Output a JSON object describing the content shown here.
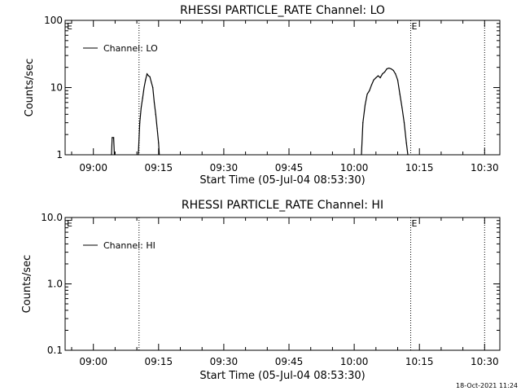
{
  "timestamp": "18-Oct-2021 11:24",
  "chart_data": [
    {
      "type": "line",
      "title": "RHESSI PARTICLE_RATE Channel: LO",
      "xlabel": "Start Time (05-Jul-04 08:53:30)",
      "ylabel": "Counts/sec",
      "yscale": "log",
      "xlim": [
        "08:53:30",
        "10:33:30"
      ],
      "ylim": [
        1,
        100
      ],
      "xticks": [
        "09:00",
        "09:15",
        "09:30",
        "09:45",
        "10:00",
        "10:15",
        "10:30"
      ],
      "yticks": [
        "1",
        "10",
        "100"
      ],
      "legend": {
        "label": "Channel: LO",
        "placement": "top-left"
      },
      "markers": [
        {
          "time": "09:10:30",
          "label": ""
        },
        {
          "time": "10:13:00",
          "label": "E"
        },
        {
          "time": "10:30:00",
          "label": ""
        }
      ],
      "corner_label": "E",
      "series": [
        {
          "name": "Channel: LO",
          "segments": [
            [
              [
                "09:04:10",
                1.0
              ],
              [
                "09:04:20",
                1.8
              ],
              [
                "09:04:40",
                1.8
              ],
              [
                "09:04:50",
                1.0
              ]
            ],
            [
              [
                "09:10:20",
                1.0
              ],
              [
                "09:10:40",
                3.0
              ],
              [
                "09:11:00",
                5.0
              ],
              [
                "09:11:20",
                7.0
              ],
              [
                "09:11:40",
                10.0
              ],
              [
                "09:12:00",
                13.0
              ],
              [
                "09:12:20",
                16.0
              ],
              [
                "09:12:40",
                15.0
              ],
              [
                "09:13:00",
                14.5
              ],
              [
                "09:13:20",
                12.0
              ],
              [
                "09:13:40",
                10.0
              ],
              [
                "09:14:00",
                6.0
              ],
              [
                "09:14:20",
                4.0
              ],
              [
                "09:14:40",
                2.5
              ],
              [
                "09:15:00",
                1.5
              ],
              [
                "09:15:10",
                1.0
              ]
            ],
            [
              [
                "10:01:40",
                1.0
              ],
              [
                "10:02:00",
                3.0
              ],
              [
                "10:02:30",
                5.5
              ],
              [
                "10:03:00",
                8.0
              ],
              [
                "10:03:30",
                9.0
              ],
              [
                "10:04:00",
                11.0
              ],
              [
                "10:04:30",
                13.0
              ],
              [
                "10:05:00",
                14.0
              ],
              [
                "10:05:30",
                15.0
              ],
              [
                "10:06:00",
                14.0
              ],
              [
                "10:06:30",
                16.0
              ],
              [
                "10:07:00",
                17.0
              ],
              [
                "10:07:30",
                19.0
              ],
              [
                "10:08:00",
                19.5
              ],
              [
                "10:08:30",
                19.0
              ],
              [
                "10:09:00",
                18.0
              ],
              [
                "10:09:30",
                16.0
              ],
              [
                "10:10:00",
                13.0
              ],
              [
                "10:10:30",
                8.0
              ],
              [
                "10:11:00",
                5.0
              ],
              [
                "10:11:30",
                3.0
              ],
              [
                "10:12:00",
                1.5
              ],
              [
                "10:12:20",
                1.0
              ]
            ]
          ]
        }
      ]
    },
    {
      "type": "line",
      "title": "RHESSI PARTICLE_RATE Channel: HI",
      "xlabel": "Start Time (05-Jul-04 08:53:30)",
      "ylabel": "Counts/sec",
      "yscale": "log",
      "xlim": [
        "08:53:30",
        "10:33:30"
      ],
      "ylim": [
        0.1,
        10
      ],
      "xticks": [
        "09:00",
        "09:15",
        "09:30",
        "09:45",
        "10:00",
        "10:15",
        "10:30"
      ],
      "yticks": [
        "0.1",
        "1.0",
        "10.0"
      ],
      "legend": {
        "label": "Channel: HI",
        "placement": "top-left"
      },
      "markers": [
        {
          "time": "09:10:30",
          "label": ""
        },
        {
          "time": "10:13:00",
          "label": "E"
        },
        {
          "time": "10:30:00",
          "label": ""
        }
      ],
      "corner_label": "E",
      "series": [
        {
          "name": "Channel: HI",
          "segments": []
        }
      ]
    }
  ]
}
